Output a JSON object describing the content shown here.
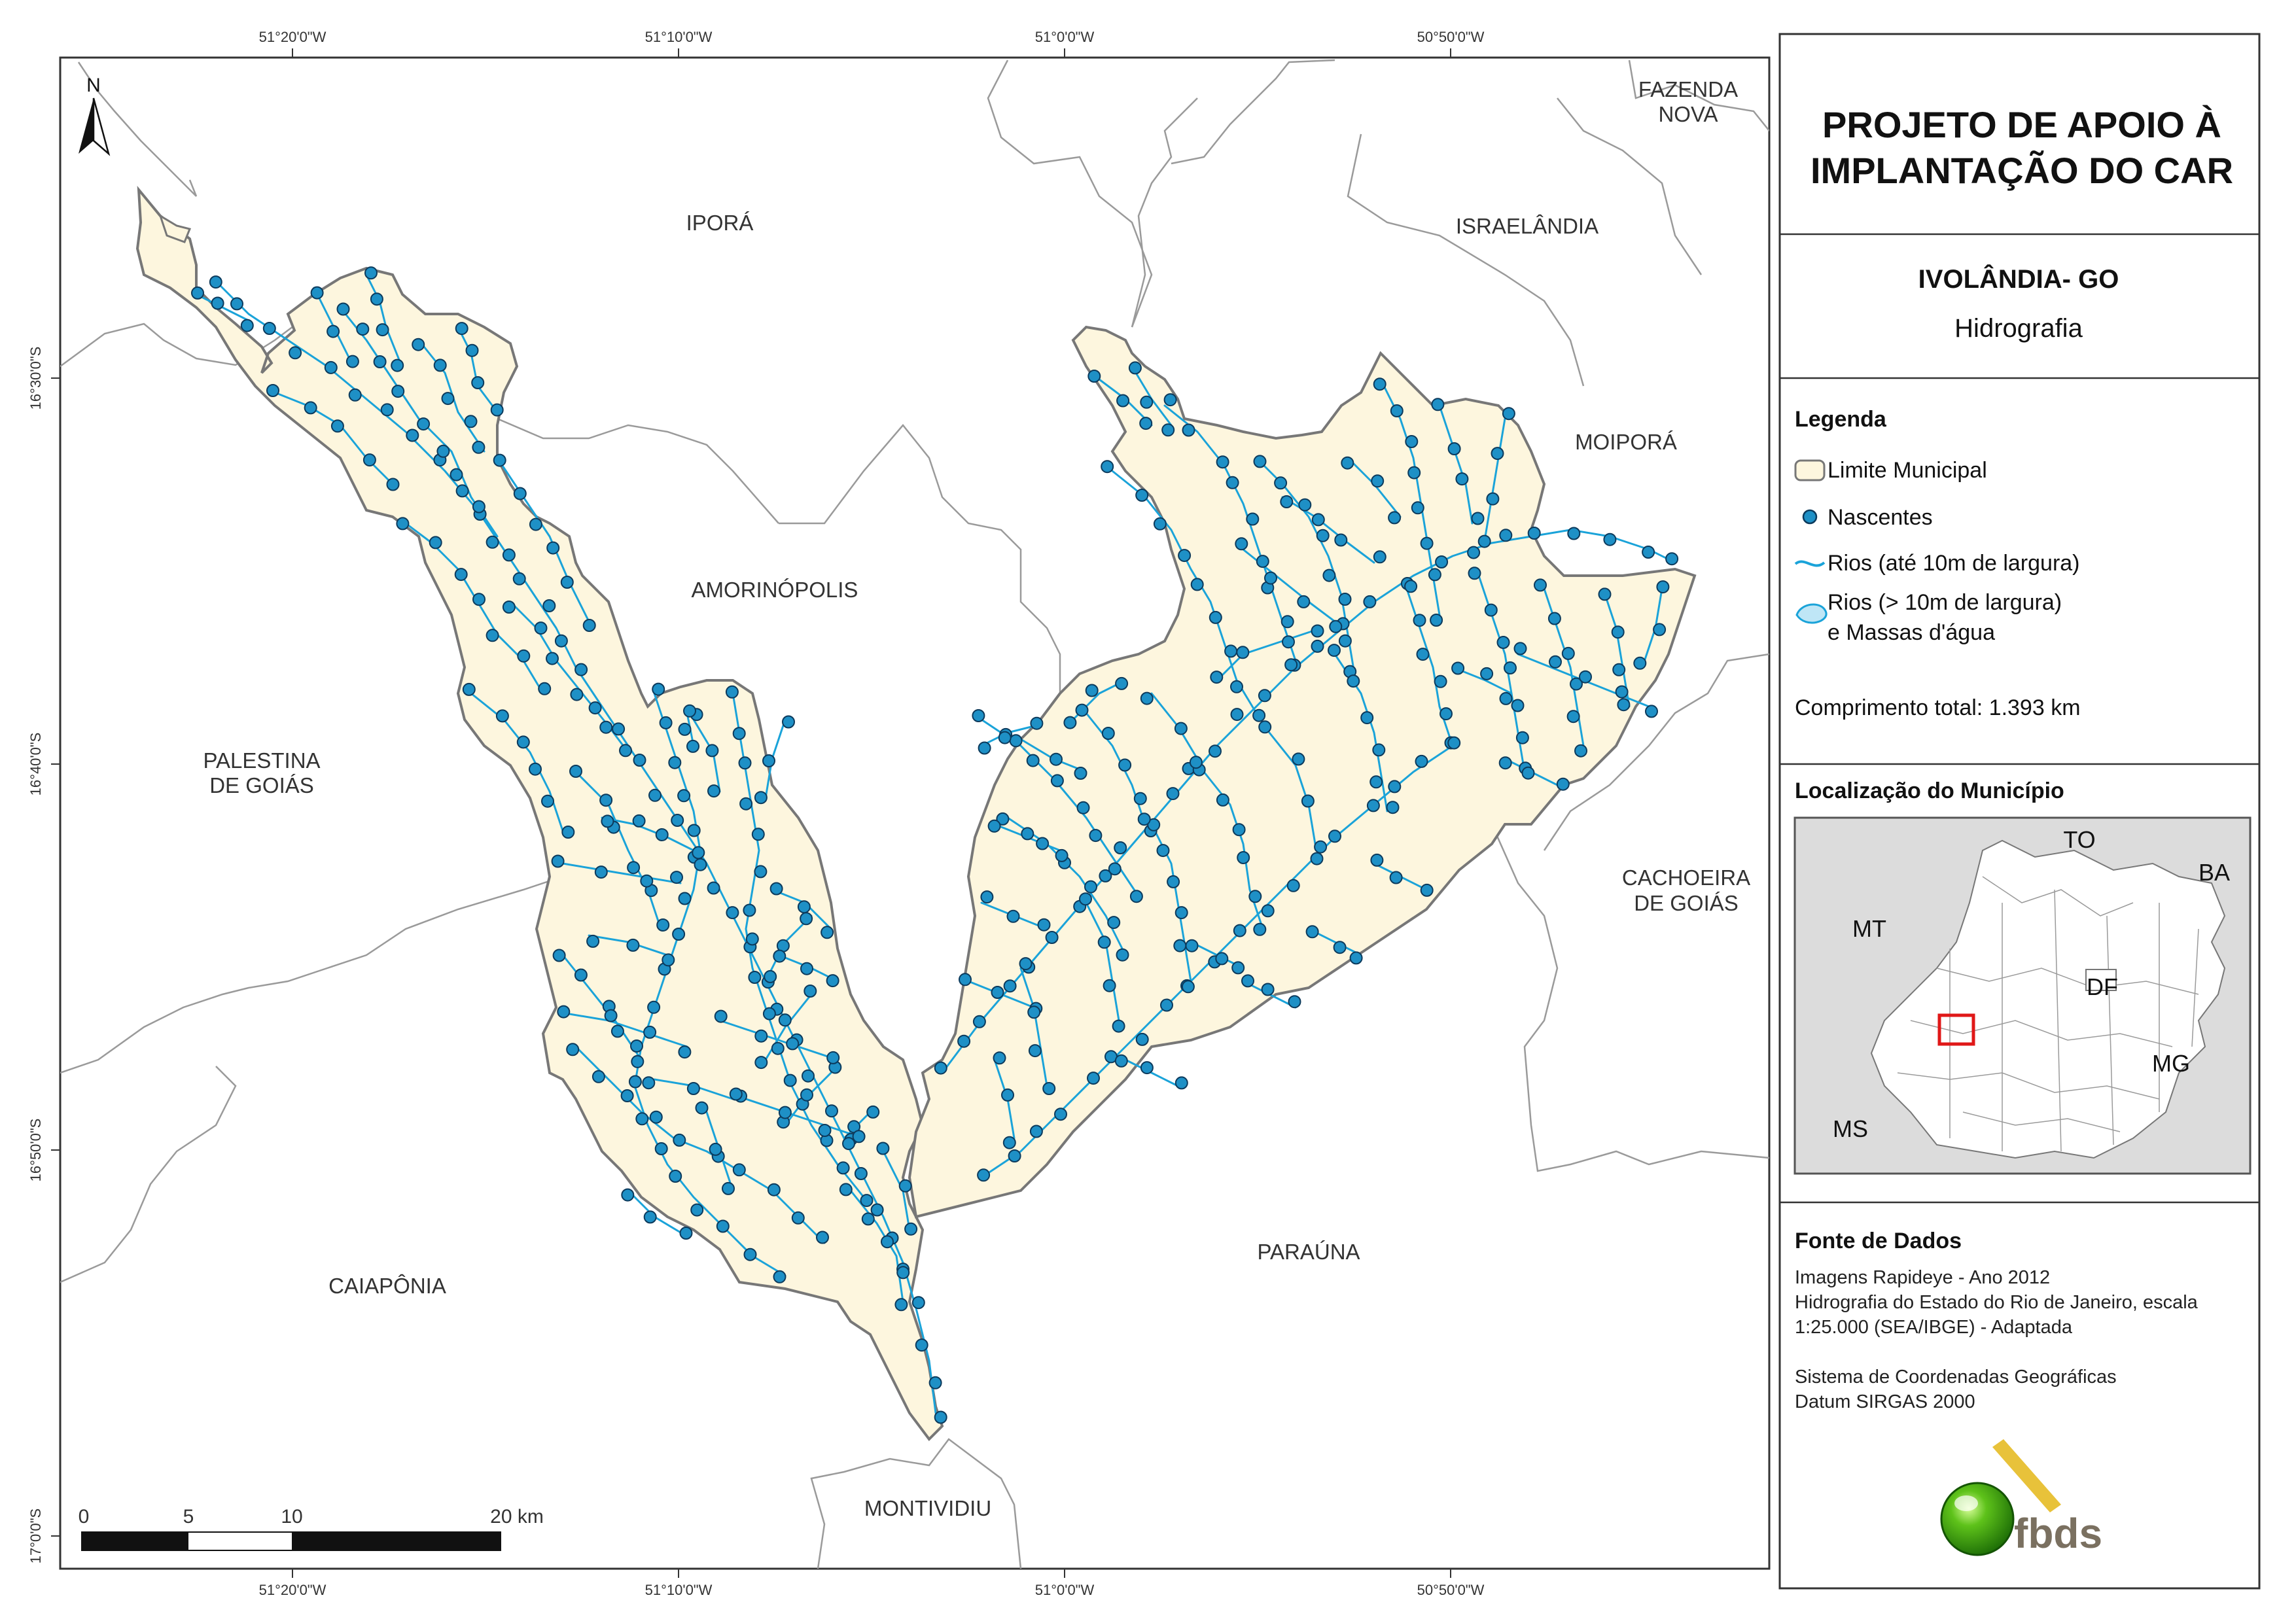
{
  "map": {
    "coordinates": {
      "top": [
        "51°20'0\"W",
        "51°10'0\"W",
        "51°0'0\"W",
        "50°50'0\"W"
      ],
      "bottom": [
        "51°20'0\"W",
        "51°10'0\"W",
        "51°0'0\"W",
        "50°50'0\"W"
      ],
      "left": [
        "16°30'0\"S",
        "16°40'0\"S",
        "16°50'0\"S",
        "17°0'0\"S"
      ]
    },
    "north_label": "N",
    "municipalities": {
      "ipora": "IPORÁ",
      "amorinopolis": "AMORINÓPOLIS",
      "palestina_1": "PALESTINA",
      "palestina_2": "DE GOIÁS",
      "caiaponia": "CAIAPÔNIA",
      "montividiu": "MONTIVIDIU",
      "parauna": "PARAÚNA",
      "israelandia": "ISRAELÂNDIA",
      "fazenda_1": "FAZENDA",
      "fazenda_2": "NOVA",
      "moipora": "MOIPORÁ",
      "cachoeira_1": "CACHOEIRA",
      "cachoeira_2": "DE GOIÁS"
    },
    "scale": {
      "ticks": [
        "0",
        "5",
        "10",
        "20 km"
      ]
    },
    "colors": {
      "municipality_fill": "#fdf6de",
      "river": "#1aa3d9",
      "spring": "#1e90c6",
      "boundary": "#8a8a8a"
    }
  },
  "panel": {
    "title_1": "PROJETO DE APOIO À",
    "title_2": "IMPLANTAÇÃO DO CAR",
    "subtitle": "IVOLÂNDIA- GO",
    "theme": "Hidrografia",
    "legend": {
      "heading": "Legenda",
      "limite": "Limite Municipal",
      "nascentes": "Nascentes",
      "rios_small": "Rios (até 10m de largura)",
      "rios_big_1": "Rios (> 10m de largura)",
      "rios_big_2": "e Massas d'água",
      "comprimento": "Comprimento total: 1.393 km"
    },
    "location": {
      "heading": "Localização do Município",
      "states": {
        "to": "TO",
        "ba": "BA",
        "mt": "MT",
        "df": "DF",
        "mg": "MG",
        "ms": "MS"
      }
    },
    "source": {
      "heading": "Fonte de Dados",
      "line1": "Imagens Rapideye - Ano 2012",
      "line2": "Hidrografia do Estado do Rio de Janeiro, escala",
      "line3": "1:25.000 (SEA/IBGE) - Adaptada",
      "line4": "Sistema de Coordenadas Geográficas",
      "line5": "Datum SIRGAS 2000"
    },
    "logo_text": "fbds"
  }
}
